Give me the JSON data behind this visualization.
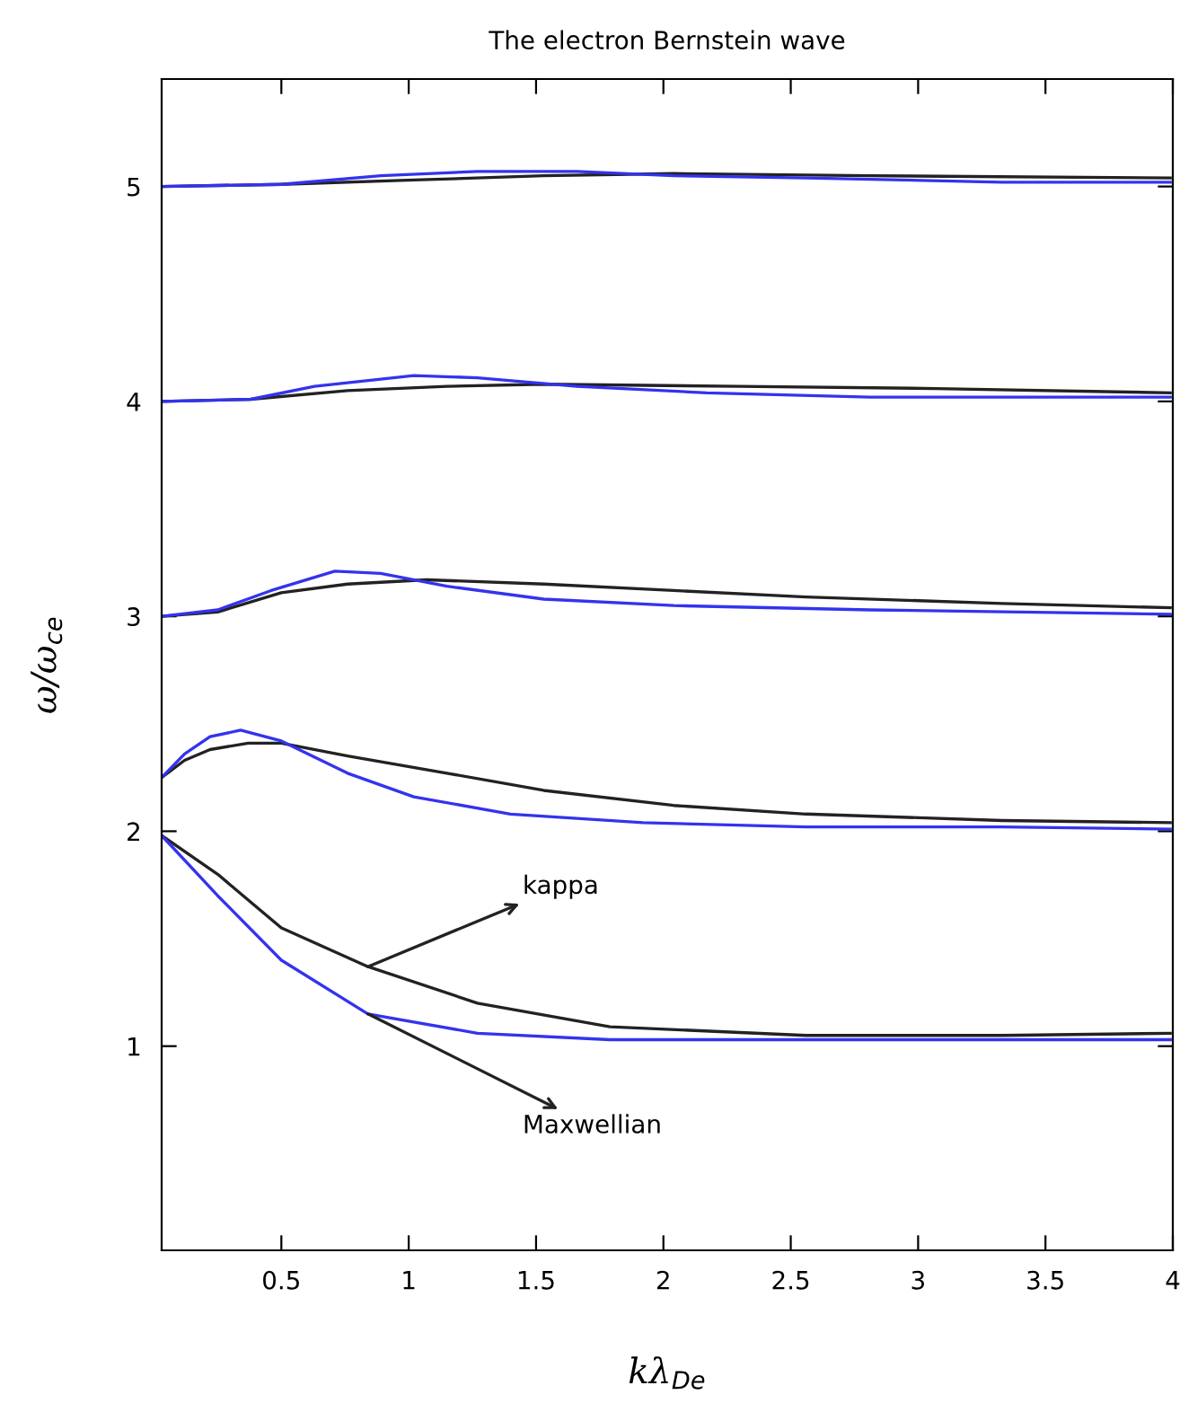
{
  "chart_data": {
    "type": "line",
    "title": "The electron Bernstein wave",
    "xlabel": "kλ$_{De}$",
    "ylabel": "ω/ω$_{ce}$",
    "xlim": [
      0.03,
      4
    ],
    "ylim": [
      0.05,
      5.5
    ],
    "xticks": [
      0.5,
      1,
      1.5,
      2,
      2.5,
      3,
      3.5,
      4
    ],
    "yticks": [
      1,
      2,
      3,
      4,
      5
    ],
    "grid": false,
    "marker": "none",
    "line_style": "solid",
    "series": [
      {
        "color": "#222222",
        "x": [
          0.03,
          0.25,
          0.5,
          0.84,
          1.27,
          1.79,
          2.56,
          3.33,
          3.99
        ],
        "values": [
          1.98,
          1.8,
          1.55,
          1.37,
          1.2,
          1.09,
          1.05,
          1.05,
          1.06
        ]
      },
      {
        "color": "#3333ee",
        "x": [
          0.03,
          0.25,
          0.5,
          0.84,
          1.27,
          1.79,
          2.56,
          3.33,
          3.99
        ],
        "values": [
          1.98,
          1.7,
          1.4,
          1.15,
          1.06,
          1.03,
          1.03,
          1.03,
          1.03
        ]
      },
      {
        "color": "#222222",
        "x": [
          0.03,
          0.12,
          0.22,
          0.37,
          0.5,
          0.76,
          1.15,
          1.53,
          2.04,
          2.56,
          3.33,
          3.99
        ],
        "values": [
          2.25,
          2.33,
          2.38,
          2.41,
          2.41,
          2.35,
          2.27,
          2.19,
          2.12,
          2.08,
          2.05,
          2.04
        ]
      },
      {
        "color": "#3333ee",
        "x": [
          0.03,
          0.12,
          0.22,
          0.34,
          0.5,
          0.76,
          1.02,
          1.4,
          1.92,
          2.56,
          3.33,
          3.99
        ],
        "values": [
          2.25,
          2.36,
          2.44,
          2.47,
          2.42,
          2.27,
          2.16,
          2.08,
          2.04,
          2.02,
          2.02,
          2.01
        ]
      },
      {
        "color": "#222222",
        "x": [
          0.03,
          0.25,
          0.5,
          0.76,
          1.07,
          1.53,
          2.04,
          2.56,
          3.33,
          3.99
        ],
        "values": [
          3.0,
          3.02,
          3.11,
          3.15,
          3.17,
          3.15,
          3.12,
          3.09,
          3.06,
          3.04
        ]
      },
      {
        "color": "#3333ee",
        "x": [
          0.03,
          0.25,
          0.46,
          0.71,
          0.89,
          1.15,
          1.53,
          2.04,
          2.81,
          3.99
        ],
        "values": [
          3.0,
          3.03,
          3.12,
          3.21,
          3.2,
          3.14,
          3.08,
          3.05,
          3.03,
          3.01
        ]
      },
      {
        "color": "#222222",
        "x": [
          0.03,
          0.38,
          0.76,
          1.15,
          1.53,
          2.3,
          3.07,
          3.99
        ],
        "values": [
          4.0,
          4.01,
          4.05,
          4.07,
          4.08,
          4.07,
          4.06,
          4.04
        ]
      },
      {
        "color": "#3333ee",
        "x": [
          0.03,
          0.38,
          0.63,
          1.02,
          1.27,
          1.66,
          2.17,
          2.81,
          3.99
        ],
        "values": [
          4.0,
          4.01,
          4.07,
          4.12,
          4.11,
          4.07,
          4.04,
          4.02,
          4.02
        ]
      },
      {
        "color": "#222222",
        "x": [
          0.03,
          0.5,
          1.02,
          1.53,
          2.04,
          2.81,
          3.99
        ],
        "values": [
          5.0,
          5.01,
          5.03,
          5.05,
          5.06,
          5.05,
          5.04
        ]
      },
      {
        "color": "#3333ee",
        "x": [
          0.03,
          0.5,
          0.89,
          1.27,
          1.66,
          2.04,
          2.56,
          3.33,
          3.99
        ],
        "values": [
          5.0,
          5.01,
          5.05,
          5.07,
          5.07,
          5.05,
          5.04,
          5.02,
          5.02
        ]
      }
    ],
    "annotations": [
      {
        "text": "kappa",
        "x": 0.84,
        "y": 1.37
      },
      {
        "text": "Maxwellian",
        "x": 0.84,
        "y": 1.15
      }
    ]
  }
}
